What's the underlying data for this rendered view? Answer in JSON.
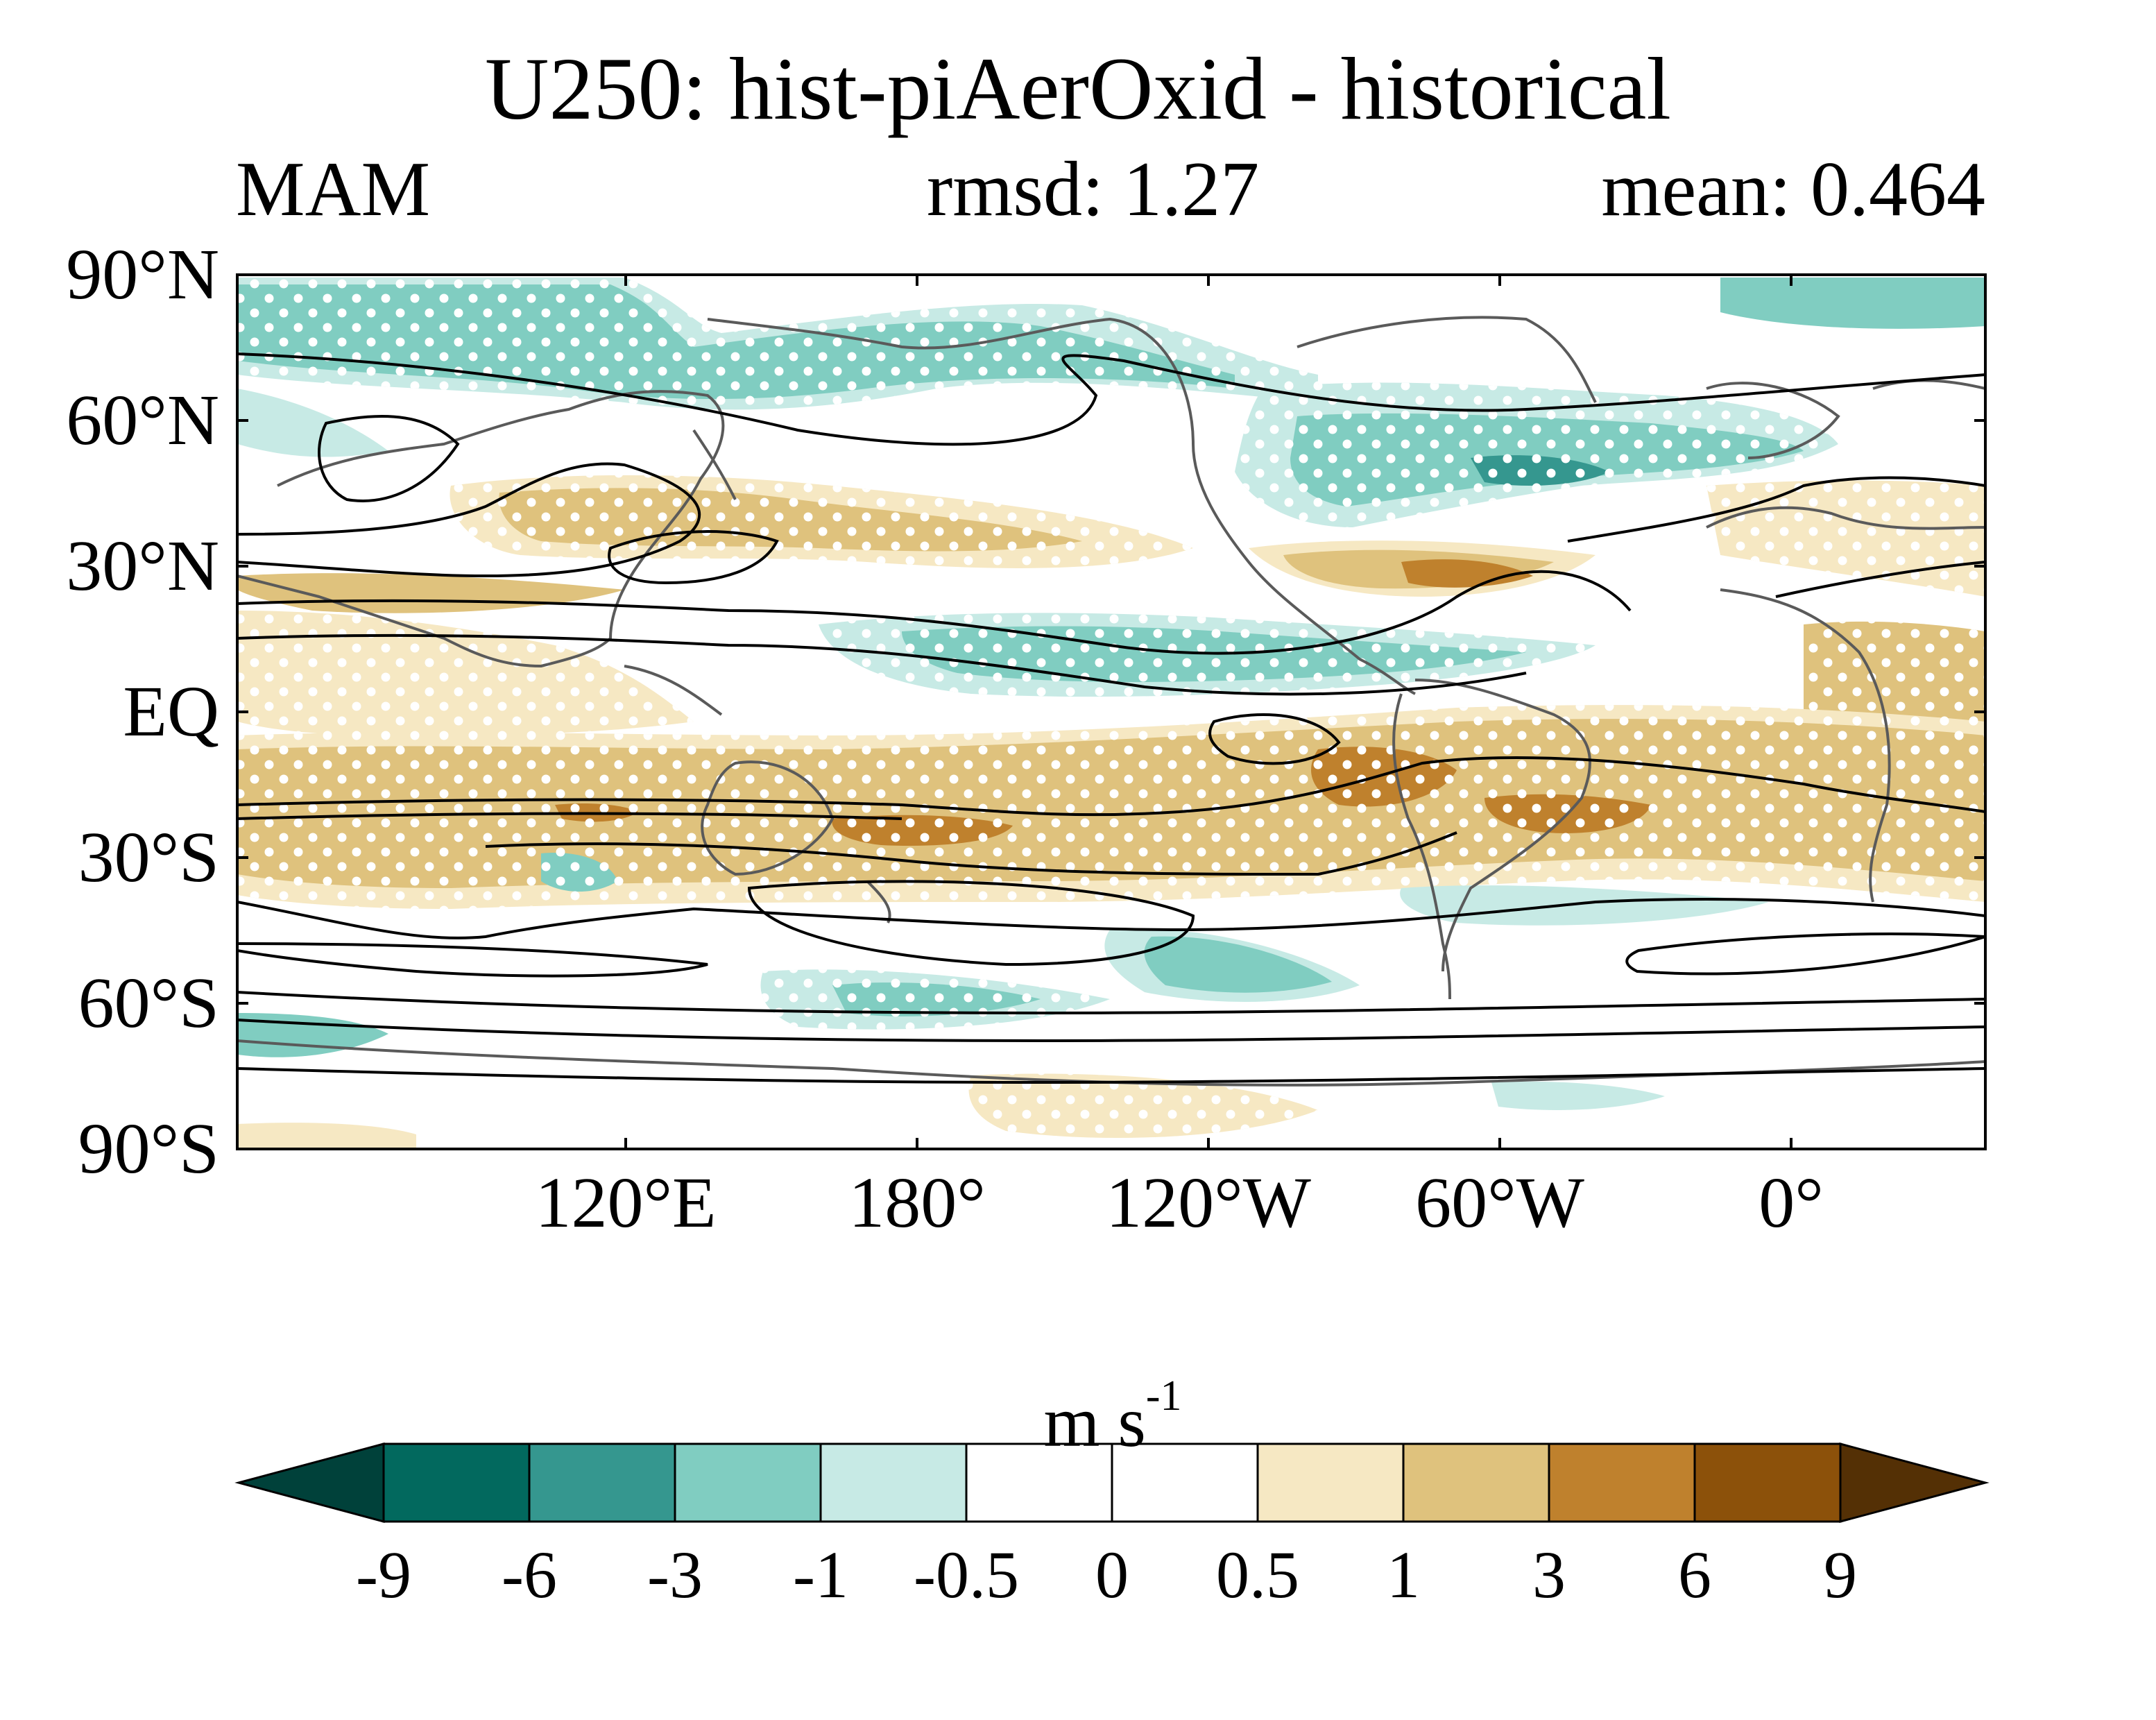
{
  "header": {
    "title": "U250: hist-piAerOxid - historical",
    "season": "MAM",
    "rmsd": "rmsd: 1.27",
    "mean": "mean: 0.464"
  },
  "map": {
    "y_axis_labels": [
      "90°N",
      "60°N",
      "30°N",
      "EQ",
      "30°S",
      "60°S",
      "90°S"
    ],
    "x_axis_labels": [
      "120°E",
      "180°",
      "120°W",
      "60°W",
      "0°"
    ],
    "fields": [
      "U250 difference (shaded)",
      "climatological jet (contours)",
      "significance (stippling)"
    ]
  },
  "colorbar": {
    "units_base": "m s",
    "units_exp": "-1",
    "labels": [
      "-9",
      "-6",
      "-3",
      "-1",
      "-0.5",
      "0",
      "0.5",
      "1",
      "3",
      "6",
      "9"
    ],
    "colors": [
      "#00413a",
      "#02695e",
      "#35978f",
      "#80cdc1",
      "#c7eae5",
      "#ffffff",
      "#ffffff",
      "#f6e8c3",
      "#dfc27d",
      "#bf812d",
      "#8c510a",
      "#543005"
    ]
  },
  "colors": {
    "coast": "#5a5a5a",
    "contour": "#000000",
    "stipple": "#ffffff"
  }
}
